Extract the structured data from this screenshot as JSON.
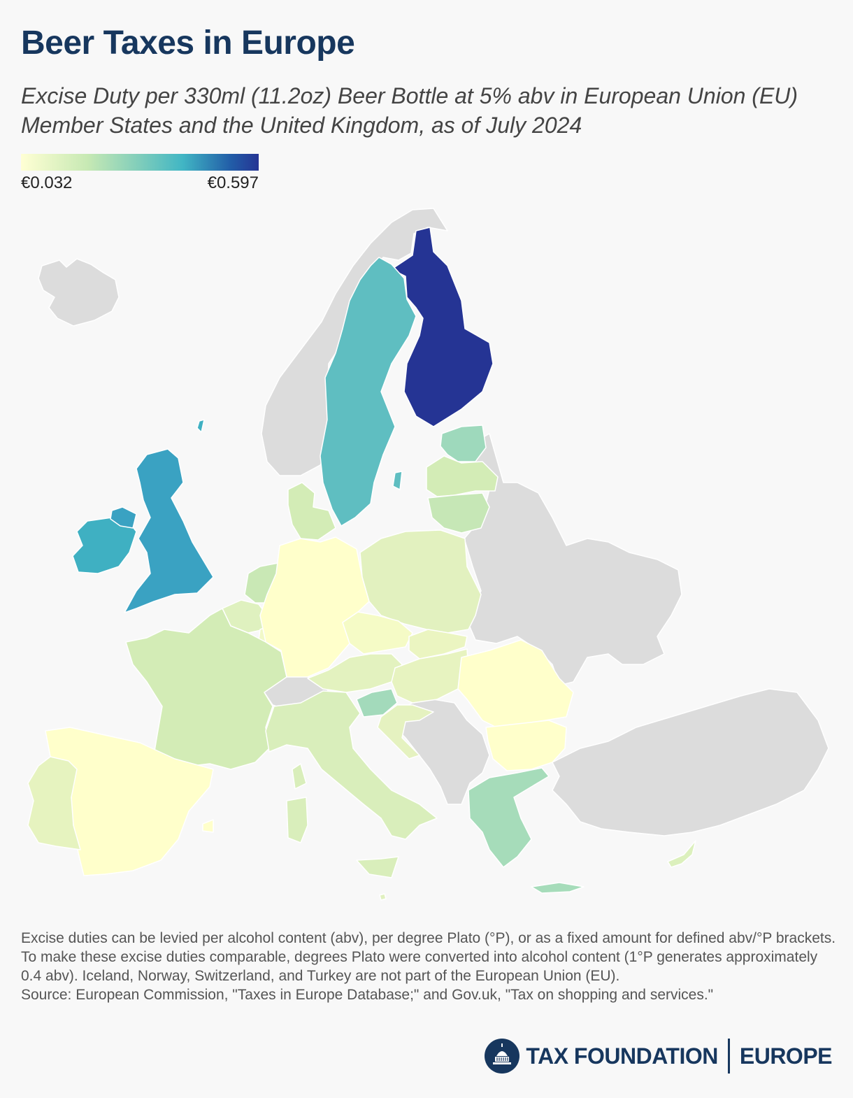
{
  "header": {
    "title": "Beer Taxes in Europe",
    "subtitle": "Excise Duty per 330ml (11.2oz) Beer Bottle at 5% abv in European Union (EU) Member States and the United Kingdom, as of July 2024"
  },
  "legend": {
    "min_label": "€0.032",
    "max_label": "€0.597",
    "min_value": 0.032,
    "max_value": 0.597,
    "scale": [
      "#ffffd4",
      "#c7e9b4",
      "#7fcdbb",
      "#41b6c4",
      "#225ea8",
      "#253494"
    ]
  },
  "colors": {
    "no_data": "#dcdcdc",
    "background": "#f8f8f8",
    "title": "#17375e"
  },
  "map": {
    "regions": [
      {
        "id": "finland",
        "fill": "#253494"
      },
      {
        "id": "sweden",
        "fill": "#5fbec1"
      },
      {
        "id": "ireland",
        "fill": "#3fb0c2"
      },
      {
        "id": "united-kingdom",
        "fill": "#3aa2c2"
      },
      {
        "id": "estonia",
        "fill": "#9ed9bc"
      },
      {
        "id": "latvia",
        "fill": "#d3ecb6"
      },
      {
        "id": "lithuania",
        "fill": "#c6e7b6"
      },
      {
        "id": "denmark",
        "fill": "#d3ecb6"
      },
      {
        "id": "netherlands",
        "fill": "#c9e8b5"
      },
      {
        "id": "belgium",
        "fill": "#dff1bf"
      },
      {
        "id": "luxembourg",
        "fill": "#f1f9c8"
      },
      {
        "id": "germany",
        "fill": "#ffffcb"
      },
      {
        "id": "poland",
        "fill": "#e2f1bf"
      },
      {
        "id": "czechia",
        "fill": "#f5fbc6"
      },
      {
        "id": "slovakia",
        "fill": "#ebf5c1"
      },
      {
        "id": "austria",
        "fill": "#e3f2bf"
      },
      {
        "id": "hungary",
        "fill": "#e7f3c0"
      },
      {
        "id": "slovenia",
        "fill": "#a3dabb"
      },
      {
        "id": "croatia",
        "fill": "#e5f2c0"
      },
      {
        "id": "romania",
        "fill": "#ffffcb"
      },
      {
        "id": "bulgaria",
        "fill": "#ffffcb"
      },
      {
        "id": "greece",
        "fill": "#a6dcba"
      },
      {
        "id": "cyprus",
        "fill": "#dcf0bd"
      },
      {
        "id": "france",
        "fill": "#d3ecb6"
      },
      {
        "id": "spain",
        "fill": "#ffffcb"
      },
      {
        "id": "portugal",
        "fill": "#e6f3bf"
      },
      {
        "id": "italy",
        "fill": "#d9eebb"
      },
      {
        "id": "malta",
        "fill": "#e0f0bf"
      },
      {
        "id": "iceland",
        "fill": "#dcdcdc"
      },
      {
        "id": "norway",
        "fill": "#dcdcdc"
      },
      {
        "id": "switzerland",
        "fill": "#dcdcdc"
      },
      {
        "id": "turkey",
        "fill": "#dcdcdc"
      },
      {
        "id": "russia-belarus-ukraine",
        "fill": "#dcdcdc"
      },
      {
        "id": "western-balkans",
        "fill": "#dcdcdc"
      }
    ]
  },
  "notes": {
    "text": "Excise duties can be levied per alcohol content (abv), per degree Plato (°P), or as a fixed amount for defined abv/°P brackets. To make these excise duties comparable, degrees Plato were converted into alcohol content (1°P generates approximately 0.4 abv). Iceland, Norway, Switzerland, and Turkey are not part of the European Union (EU).",
    "source": "Source: European Commission, \"Taxes in Europe Database;\" and Gov.uk, \"Tax on shopping and services.\""
  },
  "branding": {
    "name": "TAX FOUNDATION",
    "region": "EUROPE",
    "logo_icon": "capitol-dome-icon"
  }
}
